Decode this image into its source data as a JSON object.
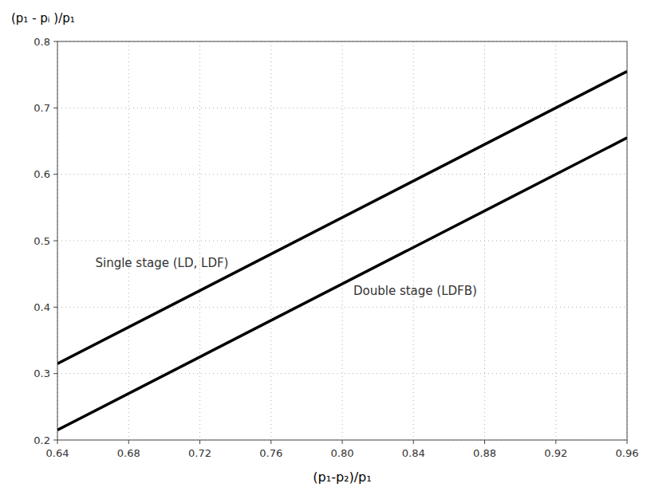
{
  "chart_data": {
    "type": "line",
    "x_label": "(p₁-p₂)/p₁",
    "y_label": "(p₁ - pᵢ )/p₁",
    "x": [
      0.64,
      0.96
    ],
    "series": [
      {
        "name": "Single stage (LD, LDF)",
        "color": "#000000",
        "values": [
          0.315,
          0.755
        ]
      },
      {
        "name": "Double stage (LDFB)",
        "color": "#000000",
        "values": [
          0.215,
          0.655
        ]
      }
    ],
    "xlim": [
      0.64,
      0.96
    ],
    "ylim": [
      0.2,
      0.8
    ],
    "xticks": [
      0.64,
      0.68,
      0.72,
      0.76,
      {
        "value": 0.8,
        "label": "0.80"
      },
      0.84,
      0.88,
      0.92,
      0.96
    ],
    "yticks": [
      0.2,
      0.3,
      0.4,
      0.5,
      0.6,
      0.7,
      0.8
    ],
    "grid": true
  }
}
